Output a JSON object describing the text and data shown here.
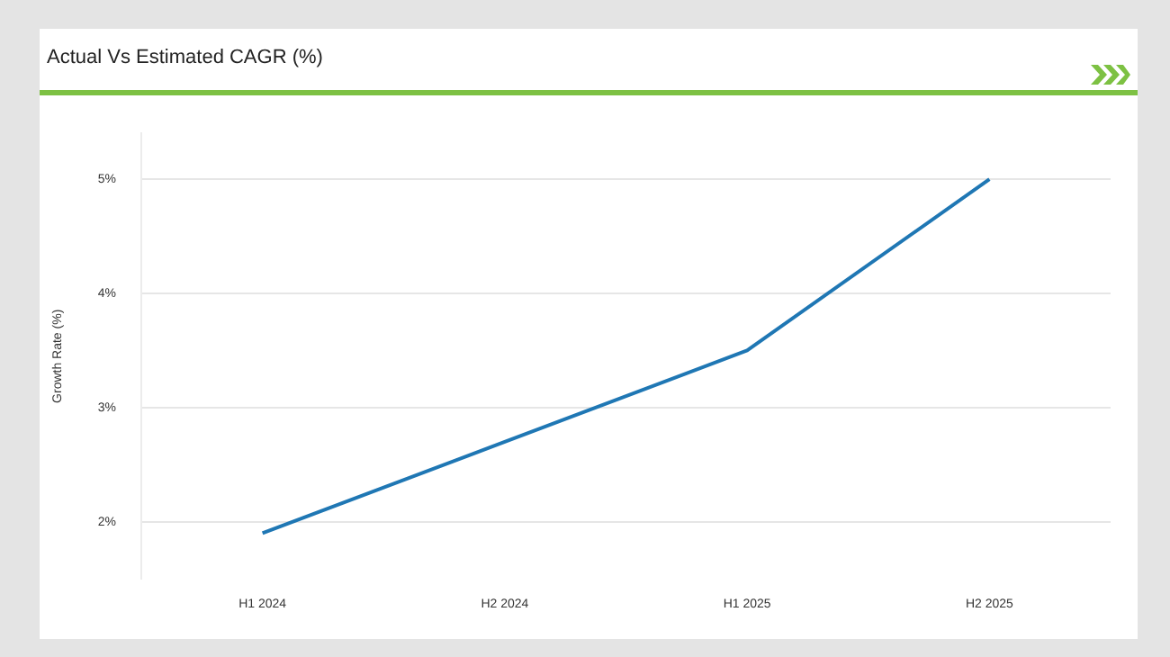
{
  "chart_data": {
    "type": "line",
    "title": "Actual Vs Estimated CAGR (%)",
    "ylabel": "Growth Rate (%)",
    "categories": [
      "H1 2024",
      "H2 2024",
      "H1 2025",
      "H2 2025"
    ],
    "series": [
      {
        "color": "#1f77b4",
        "values": [
          1.9,
          2.7,
          3.5,
          5.0
        ]
      }
    ],
    "ylim": [
      1.5,
      5.4
    ],
    "yticks": [
      {
        "value": 2,
        "label": "2%"
      },
      {
        "value": 3,
        "label": "3%"
      },
      {
        "value": 4,
        "label": "4%"
      },
      {
        "value": 5,
        "label": "5%"
      }
    ],
    "grid": "y",
    "legend": false,
    "marker": "none",
    "line_style": "solid"
  }
}
